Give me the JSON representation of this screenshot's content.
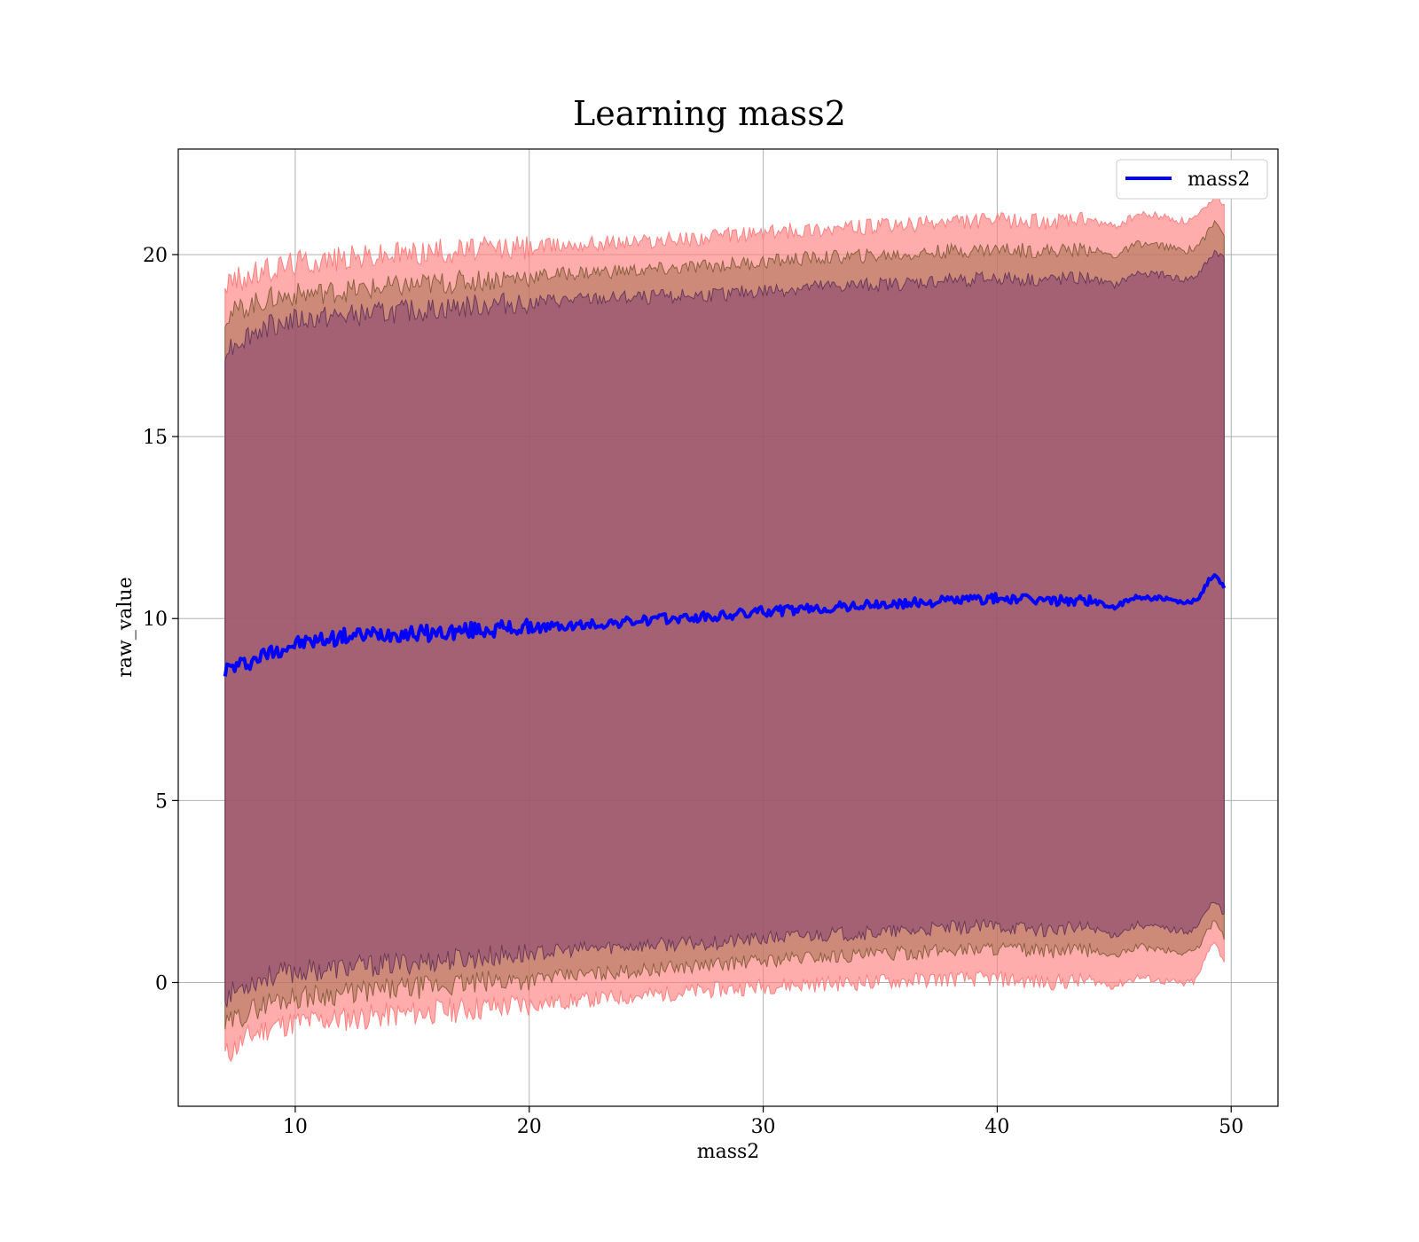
{
  "chart_data": {
    "type": "line",
    "title": "Learning mass2",
    "xlabel": "mass2",
    "ylabel": "raw_value",
    "xlim": [
      5,
      52
    ],
    "ylim": [
      -3.4,
      22.9
    ],
    "xticks": [
      10,
      20,
      30,
      40,
      50
    ],
    "yticks": [
      0,
      5,
      10,
      15,
      20
    ],
    "grid": true,
    "legend": {
      "position": "upper right",
      "entries": [
        "mass2"
      ]
    },
    "colors": {
      "line": "#0000ff",
      "band_outer": "#ff8080",
      "band_middle": "#a67050",
      "band_inner": "#7f3f6f",
      "grid": "#b0b0b0"
    },
    "series": [
      {
        "name": "mass2",
        "x": [
          7.0,
          8.0,
          9.0,
          10.0,
          12.0,
          14.0,
          16.0,
          18.0,
          20.0,
          22.0,
          24.0,
          26.0,
          28.0,
          30.0,
          32.0,
          34.0,
          36.0,
          38.0,
          40.0,
          42.0,
          44.0,
          45.0,
          46.0,
          47.0,
          48.0,
          48.5,
          49.0,
          49.3,
          49.7
        ],
        "y": [
          8.6,
          8.8,
          9.1,
          9.3,
          9.5,
          9.6,
          9.6,
          9.7,
          9.75,
          9.8,
          9.9,
          10.0,
          10.05,
          10.2,
          10.25,
          10.35,
          10.4,
          10.5,
          10.55,
          10.5,
          10.5,
          10.3,
          10.6,
          10.55,
          10.4,
          10.5,
          11.0,
          11.2,
          10.9
        ],
        "band1_lo": [
          -2.0,
          -1.5,
          -1.2,
          -1.1,
          -1.0,
          -0.9,
          -0.8,
          -0.7,
          -0.6,
          -0.5,
          -0.4,
          -0.3,
          -0.2,
          -0.1,
          -0.05,
          0.0,
          0.05,
          0.1,
          0.1,
          0.0,
          0.05,
          -0.1,
          0.15,
          0.05,
          -0.05,
          0.05,
          0.8,
          1.2,
          0.5
        ],
        "band1_hi": [
          19.2,
          19.4,
          19.6,
          19.8,
          19.9,
          20.0,
          20.1,
          20.15,
          20.2,
          20.3,
          20.35,
          20.4,
          20.5,
          20.6,
          20.7,
          20.75,
          20.8,
          20.9,
          20.95,
          20.9,
          20.95,
          20.75,
          21.1,
          21.05,
          20.9,
          21.0,
          21.3,
          21.7,
          21.4
        ],
        "band2_lo": [
          -1.2,
          -0.8,
          -0.5,
          -0.4,
          -0.3,
          -0.2,
          -0.1,
          0.0,
          0.1,
          0.2,
          0.3,
          0.4,
          0.5,
          0.6,
          0.7,
          0.75,
          0.8,
          0.9,
          0.95,
          0.85,
          0.9,
          0.7,
          1.0,
          0.9,
          0.8,
          0.9,
          1.4,
          1.8,
          1.2
        ],
        "band2_hi": [
          18.3,
          18.6,
          18.8,
          18.9,
          19.0,
          19.1,
          19.2,
          19.3,
          19.4,
          19.5,
          19.55,
          19.6,
          19.7,
          19.8,
          19.9,
          19.95,
          20.0,
          20.1,
          20.15,
          20.1,
          20.15,
          19.95,
          20.3,
          20.25,
          20.1,
          20.2,
          20.6,
          20.9,
          20.6
        ],
        "band3_lo": [
          -0.4,
          0.0,
          0.2,
          0.3,
          0.4,
          0.5,
          0.6,
          0.7,
          0.8,
          0.9,
          1.0,
          1.05,
          1.1,
          1.2,
          1.3,
          1.35,
          1.4,
          1.5,
          1.55,
          1.45,
          1.5,
          1.3,
          1.6,
          1.5,
          1.4,
          1.5,
          2.0,
          2.3,
          1.8
        ],
        "band3_hi": [
          17.4,
          17.8,
          18.1,
          18.2,
          18.3,
          18.4,
          18.5,
          18.6,
          18.7,
          18.75,
          18.8,
          18.85,
          18.9,
          19.0,
          19.1,
          19.15,
          19.2,
          19.3,
          19.35,
          19.3,
          19.35,
          19.15,
          19.5,
          19.45,
          19.3,
          19.4,
          19.8,
          20.1,
          19.9
        ]
      }
    ]
  }
}
